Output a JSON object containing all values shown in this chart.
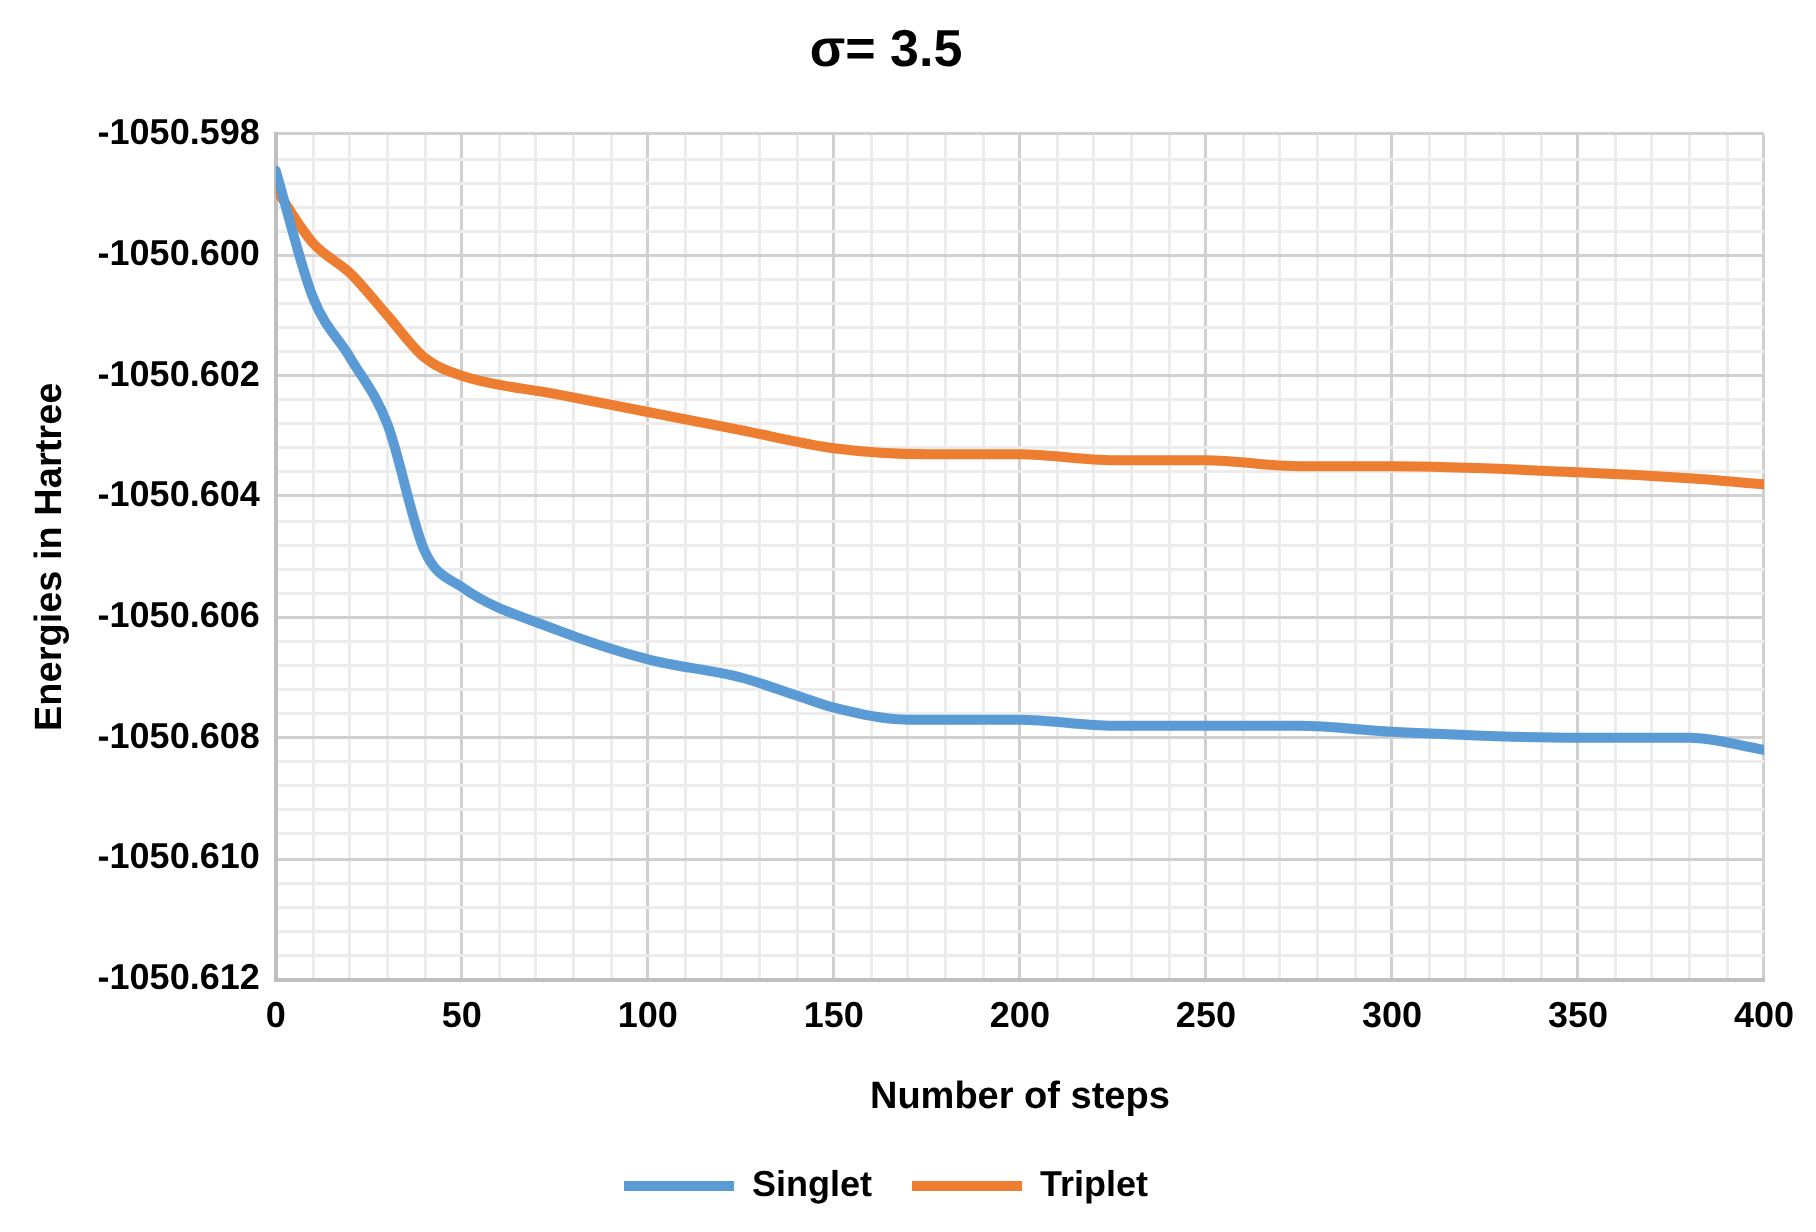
{
  "chart_data": {
    "type": "line",
    "title": "σ= 3.5",
    "xlabel": "Number of steps",
    "ylabel": "Energies in Hartree",
    "xlim": [
      0,
      400
    ],
    "xticks": [
      0,
      {
        "value": 10,
        "label": null
      },
      {
        "value": 20,
        "label": null
      },
      {
        "value": 30,
        "label": null
      },
      {
        "value": 40,
        "label": null
      },
      50,
      {
        "value": 60,
        "label": null
      },
      {
        "value": 70,
        "label": null
      },
      {
        "value": 80,
        "label": null
      },
      {
        "value": 90,
        "label": null
      },
      100,
      {
        "value": 110,
        "label": null
      },
      {
        "value": 120,
        "label": null
      },
      {
        "value": 130,
        "label": null
      },
      {
        "value": 140,
        "label": null
      },
      150,
      {
        "value": 160,
        "label": null
      },
      {
        "value": 170,
        "label": null
      },
      {
        "value": 180,
        "label": null
      },
      {
        "value": 190,
        "label": null
      },
      200,
      {
        "value": 210,
        "label": null
      },
      {
        "value": 220,
        "label": null
      },
      {
        "value": 230,
        "label": null
      },
      {
        "value": 240,
        "label": null
      },
      250,
      {
        "value": 260,
        "label": null
      },
      {
        "value": 270,
        "label": null
      },
      {
        "value": 280,
        "label": null
      },
      {
        "value": 290,
        "label": null
      },
      300,
      {
        "value": 310,
        "label": null
      },
      {
        "value": 320,
        "label": null
      },
      {
        "value": 330,
        "label": null
      },
      {
        "value": 340,
        "label": null
      },
      350,
      {
        "value": 360,
        "label": null
      },
      {
        "value": 370,
        "label": null
      },
      {
        "value": 380,
        "label": null
      },
      {
        "value": 390,
        "label": null
      },
      400
    ],
    "ylim": [
      -1050.612,
      -1050.598
    ],
    "yticks": [
      {
        "value": -1050.612,
        "label": "-1050.612"
      },
      {
        "value": -1050.6116,
        "label": null
      },
      {
        "value": -1050.6112,
        "label": null
      },
      {
        "value": -1050.6108,
        "label": null
      },
      {
        "value": -1050.6104,
        "label": null
      },
      {
        "value": -1050.61,
        "label": "-1050.610"
      },
      {
        "value": -1050.6096,
        "label": null
      },
      {
        "value": -1050.6092,
        "label": null
      },
      {
        "value": -1050.6088,
        "label": null
      },
      {
        "value": -1050.6084,
        "label": null
      },
      {
        "value": -1050.608,
        "label": "-1050.608"
      },
      {
        "value": -1050.6076,
        "label": null
      },
      {
        "value": -1050.6072,
        "label": null
      },
      {
        "value": -1050.6068,
        "label": null
      },
      {
        "value": -1050.6064,
        "label": null
      },
      {
        "value": -1050.606,
        "label": "-1050.606"
      },
      {
        "value": -1050.6056,
        "label": null
      },
      {
        "value": -1050.6052,
        "label": null
      },
      {
        "value": -1050.6048,
        "label": null
      },
      {
        "value": -1050.6044,
        "label": null
      },
      {
        "value": -1050.604,
        "label": "-1050.604"
      },
      {
        "value": -1050.6036,
        "label": null
      },
      {
        "value": -1050.6032,
        "label": null
      },
      {
        "value": -1050.6028,
        "label": null
      },
      {
        "value": -1050.6024,
        "label": null
      },
      {
        "value": -1050.602,
        "label": "-1050.602"
      },
      {
        "value": -1050.6016,
        "label": null
      },
      {
        "value": -1050.6012,
        "label": null
      },
      {
        "value": -1050.6008,
        "label": null
      },
      {
        "value": -1050.6004,
        "label": null
      },
      {
        "value": -1050.6,
        "label": "-1050.600"
      },
      {
        "value": -1050.5996,
        "label": null
      },
      {
        "value": -1050.5992,
        "label": null
      },
      {
        "value": -1050.5988,
        "label": null
      },
      {
        "value": -1050.5984,
        "label": null
      },
      {
        "value": -1050.598,
        "label": "-1050.598"
      }
    ],
    "grid": true,
    "legend": "bottom",
    "marker": "none",
    "line_style": "solid",
    "series": [
      {
        "name": "Singlet",
        "color": "#5b9bd5",
        "x": [
          0,
          10,
          20,
          30,
          40,
          50,
          75,
          100,
          125,
          140,
          150,
          170,
          190,
          200,
          225,
          250,
          275,
          300,
          350,
          380,
          400
        ],
        "values": [
          -1050.5986,
          -1050.6007,
          -1050.6017,
          -1050.6028,
          -1050.6049,
          -1050.6055,
          -1050.6062,
          -1050.6067,
          -1050.607,
          -1050.6073,
          -1050.6075,
          -1050.6077,
          -1050.6077,
          -1050.6077,
          -1050.6078,
          -1050.6078,
          -1050.6078,
          -1050.6079,
          -1050.608,
          -1050.608,
          -1050.6082
        ]
      },
      {
        "name": "Triplet",
        "color": "#ed7d31",
        "x": [
          0,
          10,
          20,
          30,
          40,
          50,
          75,
          100,
          125,
          150,
          175,
          200,
          225,
          250,
          275,
          300,
          350,
          380,
          400
        ],
        "values": [
          -1050.5989,
          -1050.5998,
          -1050.6003,
          -1050.601,
          -1050.6017,
          -1050.602,
          -1050.6023,
          -1050.6026,
          -1050.6029,
          -1050.6032,
          -1050.6033,
          -1050.6033,
          -1050.6034,
          -1050.6034,
          -1050.6035,
          -1050.6035,
          -1050.6036,
          -1050.6037,
          -1050.6038
        ]
      }
    ]
  }
}
